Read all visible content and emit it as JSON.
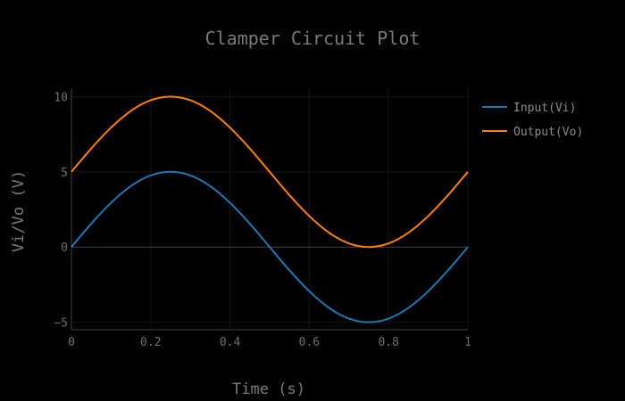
{
  "chart_data": {
    "type": "line",
    "title": "Clamper Circuit Plot",
    "xlabel": "Time (s)",
    "ylabel": "Vi/Vo (V)",
    "xlim": [
      0,
      1
    ],
    "ylim": [
      -5.5,
      10.5
    ],
    "x_ticks": [
      0,
      0.2,
      0.4,
      0.6,
      0.8,
      1
    ],
    "x_tick_labels": [
      "0",
      "0.2",
      "0.4",
      "0.6",
      "0.8",
      "1"
    ],
    "y_ticks": [
      -5,
      0,
      5,
      10
    ],
    "y_tick_labels": [
      "−5",
      "0",
      "5",
      "10"
    ],
    "grid": true,
    "legend": "top-right",
    "x": [
      0,
      0.05,
      0.1,
      0.15,
      0.2,
      0.25,
      0.3,
      0.35,
      0.4,
      0.45,
      0.5,
      0.55,
      0.6,
      0.65,
      0.7,
      0.75,
      0.8,
      0.85,
      0.9,
      0.95,
      1
    ],
    "series": [
      {
        "name": "Input(Vi)",
        "color": "#1f77b4",
        "values": [
          0,
          1.55,
          2.94,
          4.05,
          4.76,
          5,
          4.76,
          4.05,
          2.94,
          1.55,
          0,
          -1.55,
          -2.94,
          -4.05,
          -4.76,
          -5,
          -4.76,
          -4.05,
          -2.94,
          -1.55,
          0
        ]
      },
      {
        "name": "Output(Vo)",
        "color": "#ff7f0e",
        "values": [
          5,
          6.55,
          7.94,
          9.05,
          9.76,
          10,
          9.76,
          9.05,
          7.94,
          6.55,
          5,
          3.45,
          2.06,
          0.95,
          0.24,
          0,
          0.24,
          0.95,
          2.06,
          3.45,
          5
        ]
      }
    ]
  }
}
